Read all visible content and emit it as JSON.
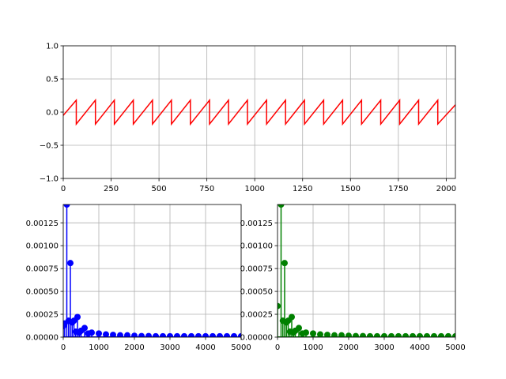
{
  "chart_data": [
    {
      "type": "line",
      "name_hint": "time-signal",
      "color": "#ff0000",
      "xlim": [
        0,
        2048
      ],
      "ylim": [
        -1.0,
        1.0
      ],
      "grid": true,
      "xticks": [
        0,
        250,
        500,
        750,
        1000,
        1250,
        1500,
        1750,
        2000
      ],
      "yticks": [
        -1.0,
        -0.5,
        0.0,
        0.5,
        1.0
      ],
      "xtick_labels": [
        "0",
        "250",
        "500",
        "750",
        "1000",
        "1250",
        "1500",
        "1750",
        "2000"
      ],
      "ytick_labels": [
        "−1.0",
        "−0.5",
        "0.0",
        "0.5",
        "1.0"
      ],
      "x": [
        0,
        68,
        68,
        168,
        168,
        267,
        267,
        366,
        366,
        466,
        466,
        565,
        565,
        664,
        664,
        764,
        764,
        863,
        863,
        962,
        962,
        1062,
        1062,
        1161,
        1161,
        1260,
        1260,
        1360,
        1360,
        1459,
        1459,
        1558,
        1558,
        1658,
        1658,
        1757,
        1757,
        1856,
        1856,
        1956,
        1956,
        2048
      ],
      "y": [
        -0.05,
        0.18,
        -0.18,
        0.18,
        -0.18,
        0.18,
        -0.18,
        0.18,
        -0.18,
        0.18,
        -0.18,
        0.18,
        -0.18,
        0.18,
        -0.18,
        0.18,
        -0.18,
        0.18,
        -0.18,
        0.18,
        -0.18,
        0.18,
        -0.18,
        0.18,
        -0.18,
        0.18,
        -0.18,
        0.18,
        -0.18,
        0.18,
        -0.18,
        0.18,
        -0.18,
        0.18,
        -0.18,
        0.18,
        -0.18,
        0.18,
        -0.18,
        0.18,
        -0.18,
        0.11
      ]
    },
    {
      "type": "stem",
      "name_hint": "spectrum-blue",
      "color": "#0000ff",
      "xlim": [
        0,
        5000
      ],
      "ylim": [
        0,
        0.00145
      ],
      "grid": true,
      "xticks": [
        0,
        1000,
        2000,
        3000,
        4000,
        5000
      ],
      "yticks": [
        0.0,
        0.00025,
        0.0005,
        0.00075,
        0.001,
        0.00125
      ],
      "xtick_labels": [
        "0",
        "1000",
        "2000",
        "3000",
        "4000",
        "5000"
      ],
      "ytick_labels": [
        "0.00000",
        "0.00025",
        "0.00050",
        "0.00075",
        "0.00100",
        "0.00125"
      ],
      "x": [
        0,
        40,
        100,
        150,
        200,
        250,
        300,
        350,
        400,
        450,
        500,
        600,
        700,
        800,
        1000,
        1200,
        1400,
        1600,
        1800,
        2000,
        2200,
        2400,
        2600,
        2800,
        3000,
        3200,
        3400,
        3600,
        3800,
        4000,
        4200,
        4400,
        4600,
        4800,
        5000
      ],
      "values": [
        0.00012,
        0.00015,
        0.00145,
        0.00018,
        0.00081,
        0.00016,
        0.00018,
        6e-05,
        0.00022,
        5e-05,
        7e-05,
        0.0001,
        4e-05,
        5e-05,
        4e-05,
        3e-05,
        2.5e-05,
        2e-05,
        2e-05,
        1.5e-05,
        1.2e-05,
        1.2e-05,
        1e-05,
        1e-05,
        1e-05,
        1e-05,
        1e-05,
        1e-05,
        1e-05,
        1e-05,
        1e-05,
        1e-05,
        1e-05,
        1e-05,
        1e-05
      ]
    },
    {
      "type": "stem",
      "name_hint": "spectrum-green",
      "color": "#008000",
      "xlim": [
        0,
        5000
      ],
      "ylim": [
        0,
        0.00145
      ],
      "grid": true,
      "xticks": [
        0,
        1000,
        2000,
        3000,
        4000,
        5000
      ],
      "yticks": [
        0.0,
        0.00025,
        0.0005,
        0.00075,
        0.001,
        0.00125
      ],
      "xtick_labels": [
        "0",
        "1000",
        "2000",
        "3000",
        "4000",
        "5000"
      ],
      "ytick_labels": [
        "0.00000",
        "0.00025",
        "0.00050",
        "0.00075",
        "0.00100",
        "0.00125"
      ],
      "x": [
        0,
        100,
        150,
        200,
        250,
        300,
        350,
        400,
        450,
        500,
        600,
        700,
        800,
        1000,
        1200,
        1400,
        1600,
        1800,
        2000,
        2200,
        2400,
        2600,
        2800,
        3000,
        3200,
        3400,
        3600,
        3800,
        4000,
        4200,
        4400,
        4600,
        4800,
        5000
      ],
      "values": [
        0.00034,
        0.00145,
        0.00018,
        0.00081,
        0.00016,
        0.00018,
        6e-05,
        0.00022,
        5e-05,
        7e-05,
        0.0001,
        4e-05,
        5e-05,
        4e-05,
        3e-05,
        2.5e-05,
        2e-05,
        2e-05,
        1.5e-05,
        1.2e-05,
        1.2e-05,
        1e-05,
        1e-05,
        1e-05,
        1e-05,
        1e-05,
        1e-05,
        1e-05,
        1e-05,
        1e-05,
        1e-05,
        1e-05,
        1e-05,
        1e-05
      ]
    }
  ]
}
